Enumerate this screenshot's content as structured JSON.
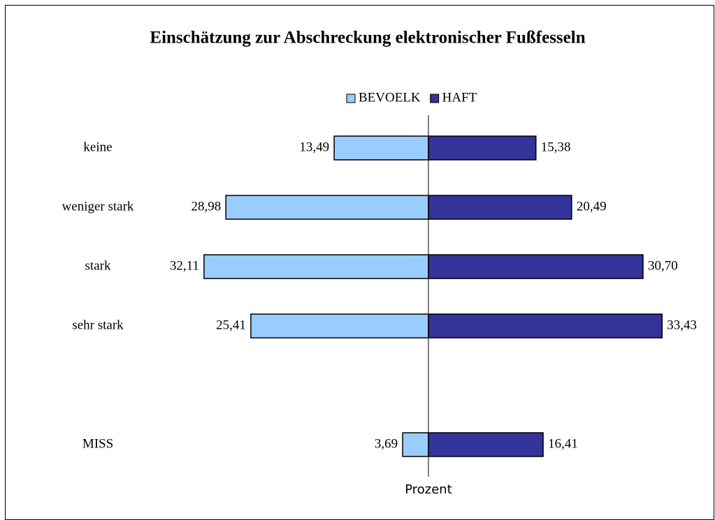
{
  "chart_data": {
    "type": "butterfly-bar",
    "title": "Einschätzung zur Abschreckung elektronischer Fußfesseln",
    "x_label": "Prozent",
    "categories": [
      "keine",
      "weniger stark",
      "stark",
      "sehr stark",
      null,
      "MISS"
    ],
    "series": [
      {
        "name": "BEVOELK",
        "color": "#99ccff",
        "values": [
          13.49,
          28.98,
          32.11,
          25.41,
          null,
          3.69
        ],
        "value_labels": [
          "13,49",
          "28,98",
          "32,11",
          "25,41",
          null,
          "3,69"
        ]
      },
      {
        "name": "HAFT",
        "color": "#333399",
        "values": [
          15.38,
          20.49,
          30.7,
          33.43,
          null,
          16.41
        ],
        "value_labels": [
          "15,38",
          "20,49",
          "30,70",
          "33,43",
          null,
          "16,41"
        ]
      }
    ],
    "legend": "top"
  }
}
